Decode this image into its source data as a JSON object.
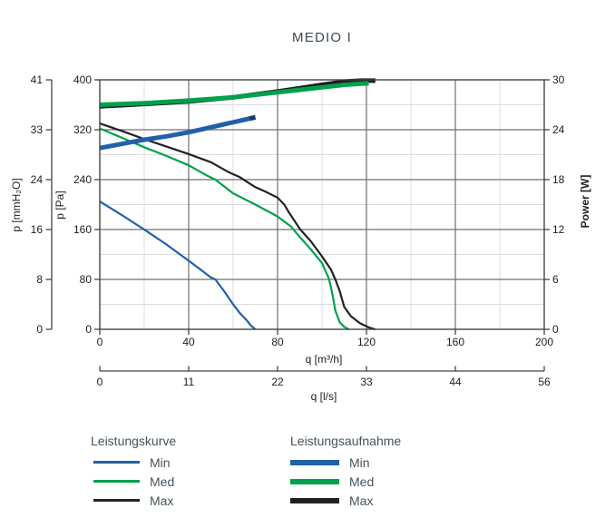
{
  "title": "MEDIO I",
  "colors": {
    "blue": "#2160a8",
    "green": "#00a14b",
    "black": "#222222",
    "grid_major": "#6f6f6f",
    "grid_minor": "#dcdcdc",
    "axis": "#444444",
    "text": "#1e1e1e",
    "heading": "#3d4a53"
  },
  "chart_data": {
    "type": "line",
    "title": "MEDIO I",
    "grid": true,
    "legend_position": "bottom",
    "x_axis_primary": {
      "label": "q [m³/h]",
      "ticks": [
        0,
        40,
        80,
        120,
        160,
        200
      ],
      "range": [
        0,
        200
      ]
    },
    "x_axis_secondary": {
      "label": "q [l/s]",
      "ticks": [
        0,
        11,
        22,
        33,
        44,
        56
      ]
    },
    "y_axis_pa": {
      "label": "p [Pa]",
      "ticks": [
        0,
        80,
        160,
        240,
        320,
        400
      ],
      "range": [
        0,
        400
      ]
    },
    "y_axis_mmh2o": {
      "label": "p [mmH₂O]",
      "ticks": [
        0,
        8,
        16,
        24,
        33,
        41
      ]
    },
    "y_axis_power": {
      "label": "Power [W]",
      "ticks": [
        0,
        6,
        12,
        18,
        24,
        30
      ],
      "range": [
        0,
        30
      ]
    },
    "series": [
      {
        "group": "Leistungskurve",
        "level": "Max",
        "name": "Leistungskurve Max",
        "axis": "pa",
        "color": "#222222",
        "width": 2.2,
        "points": [
          [
            0,
            330
          ],
          [
            10,
            318
          ],
          [
            20,
            305
          ],
          [
            30,
            293
          ],
          [
            40,
            281
          ],
          [
            50,
            268
          ],
          [
            58,
            252
          ],
          [
            63,
            244
          ],
          [
            66,
            237
          ],
          [
            70,
            228
          ],
          [
            75,
            220
          ],
          [
            80,
            211
          ],
          [
            83,
            200
          ],
          [
            85,
            188
          ],
          [
            88,
            172
          ],
          [
            90,
            161
          ],
          [
            95,
            141
          ],
          [
            100,
            117
          ],
          [
            104,
            96
          ],
          [
            106,
            80
          ],
          [
            108,
            61
          ],
          [
            109,
            48
          ],
          [
            110,
            36
          ],
          [
            113,
            21
          ],
          [
            117,
            10
          ],
          [
            121,
            3
          ],
          [
            124,
            0
          ]
        ]
      },
      {
        "group": "Leistungskurve",
        "level": "Med",
        "name": "Leistungskurve Med",
        "axis": "pa",
        "color": "#00a14b",
        "width": 2.2,
        "points": [
          [
            0,
            322
          ],
          [
            10,
            307
          ],
          [
            20,
            292
          ],
          [
            30,
            278
          ],
          [
            40,
            263
          ],
          [
            48,
            247
          ],
          [
            52,
            240
          ],
          [
            60,
            218
          ],
          [
            70,
            200
          ],
          [
            80,
            181
          ],
          [
            86,
            165
          ],
          [
            90,
            148
          ],
          [
            95,
            128
          ],
          [
            100,
            106
          ],
          [
            103,
            82
          ],
          [
            104,
            68
          ],
          [
            105,
            50
          ],
          [
            106,
            30
          ],
          [
            108,
            11
          ],
          [
            110,
            4
          ],
          [
            112,
            0
          ]
        ]
      },
      {
        "group": "Leistungskurve",
        "level": "Min",
        "name": "Leistungskurve Min",
        "axis": "pa",
        "color": "#2160a8",
        "width": 2.2,
        "points": [
          [
            0,
            205
          ],
          [
            10,
            183
          ],
          [
            20,
            160
          ],
          [
            30,
            136
          ],
          [
            40,
            110
          ],
          [
            46,
            94
          ],
          [
            50,
            83
          ],
          [
            52,
            80
          ],
          [
            56,
            61
          ],
          [
            60,
            40
          ],
          [
            63,
            26
          ],
          [
            66,
            15
          ],
          [
            68,
            6
          ],
          [
            70,
            0
          ]
        ]
      },
      {
        "group": "Leistungsaufnahme",
        "level": "Max",
        "name": "Leistungsaufnahme Max",
        "axis": "power",
        "color": "#1c1c1c",
        "width": 5,
        "points": [
          [
            0,
            26.8
          ],
          [
            20,
            27.1
          ],
          [
            40,
            27.4
          ],
          [
            60,
            27.9
          ],
          [
            80,
            28.6
          ],
          [
            90,
            29.0
          ],
          [
            100,
            29.4
          ],
          [
            105,
            29.6
          ],
          [
            111,
            29.8
          ],
          [
            118,
            29.9
          ],
          [
            124,
            29.9
          ]
        ]
      },
      {
        "group": "Leistungsaufnahme",
        "level": "Med",
        "name": "Leistungsaufnahme Med",
        "axis": "power",
        "color": "#00a14b",
        "width": 5,
        "points": [
          [
            0,
            27.0
          ],
          [
            20,
            27.2
          ],
          [
            40,
            27.5
          ],
          [
            60,
            27.9
          ],
          [
            80,
            28.5
          ],
          [
            90,
            28.8
          ],
          [
            100,
            29.1
          ],
          [
            110,
            29.4
          ],
          [
            121,
            29.6
          ]
        ]
      },
      {
        "group": "Leistungsaufnahme",
        "level": "Min",
        "name": "Leistungsaufnahme Min",
        "axis": "power",
        "color": "#2160a8",
        "width": 5,
        "end_cap_color": "#1b3a66",
        "points": [
          [
            0,
            21.8
          ],
          [
            10,
            22.3
          ],
          [
            20,
            22.8
          ],
          [
            30,
            23.2
          ],
          [
            40,
            23.7
          ],
          [
            50,
            24.3
          ],
          [
            55,
            24.6
          ],
          [
            60,
            24.9
          ],
          [
            65,
            25.2
          ],
          [
            70,
            25.5
          ]
        ]
      }
    ]
  },
  "legend": {
    "groups": [
      {
        "title": "Leistungskurve",
        "style": "thin",
        "items": [
          {
            "label": "Min",
            "color": "#2160a8"
          },
          {
            "label": "Med",
            "color": "#00a14b"
          },
          {
            "label": "Max",
            "color": "#222222"
          }
        ]
      },
      {
        "title": "Leistungsaufnahme",
        "style": "thick",
        "items": [
          {
            "label": "Min",
            "color": "#2160a8"
          },
          {
            "label": "Med",
            "color": "#00a14b"
          },
          {
            "label": "Max",
            "color": "#222222"
          }
        ]
      }
    ]
  }
}
